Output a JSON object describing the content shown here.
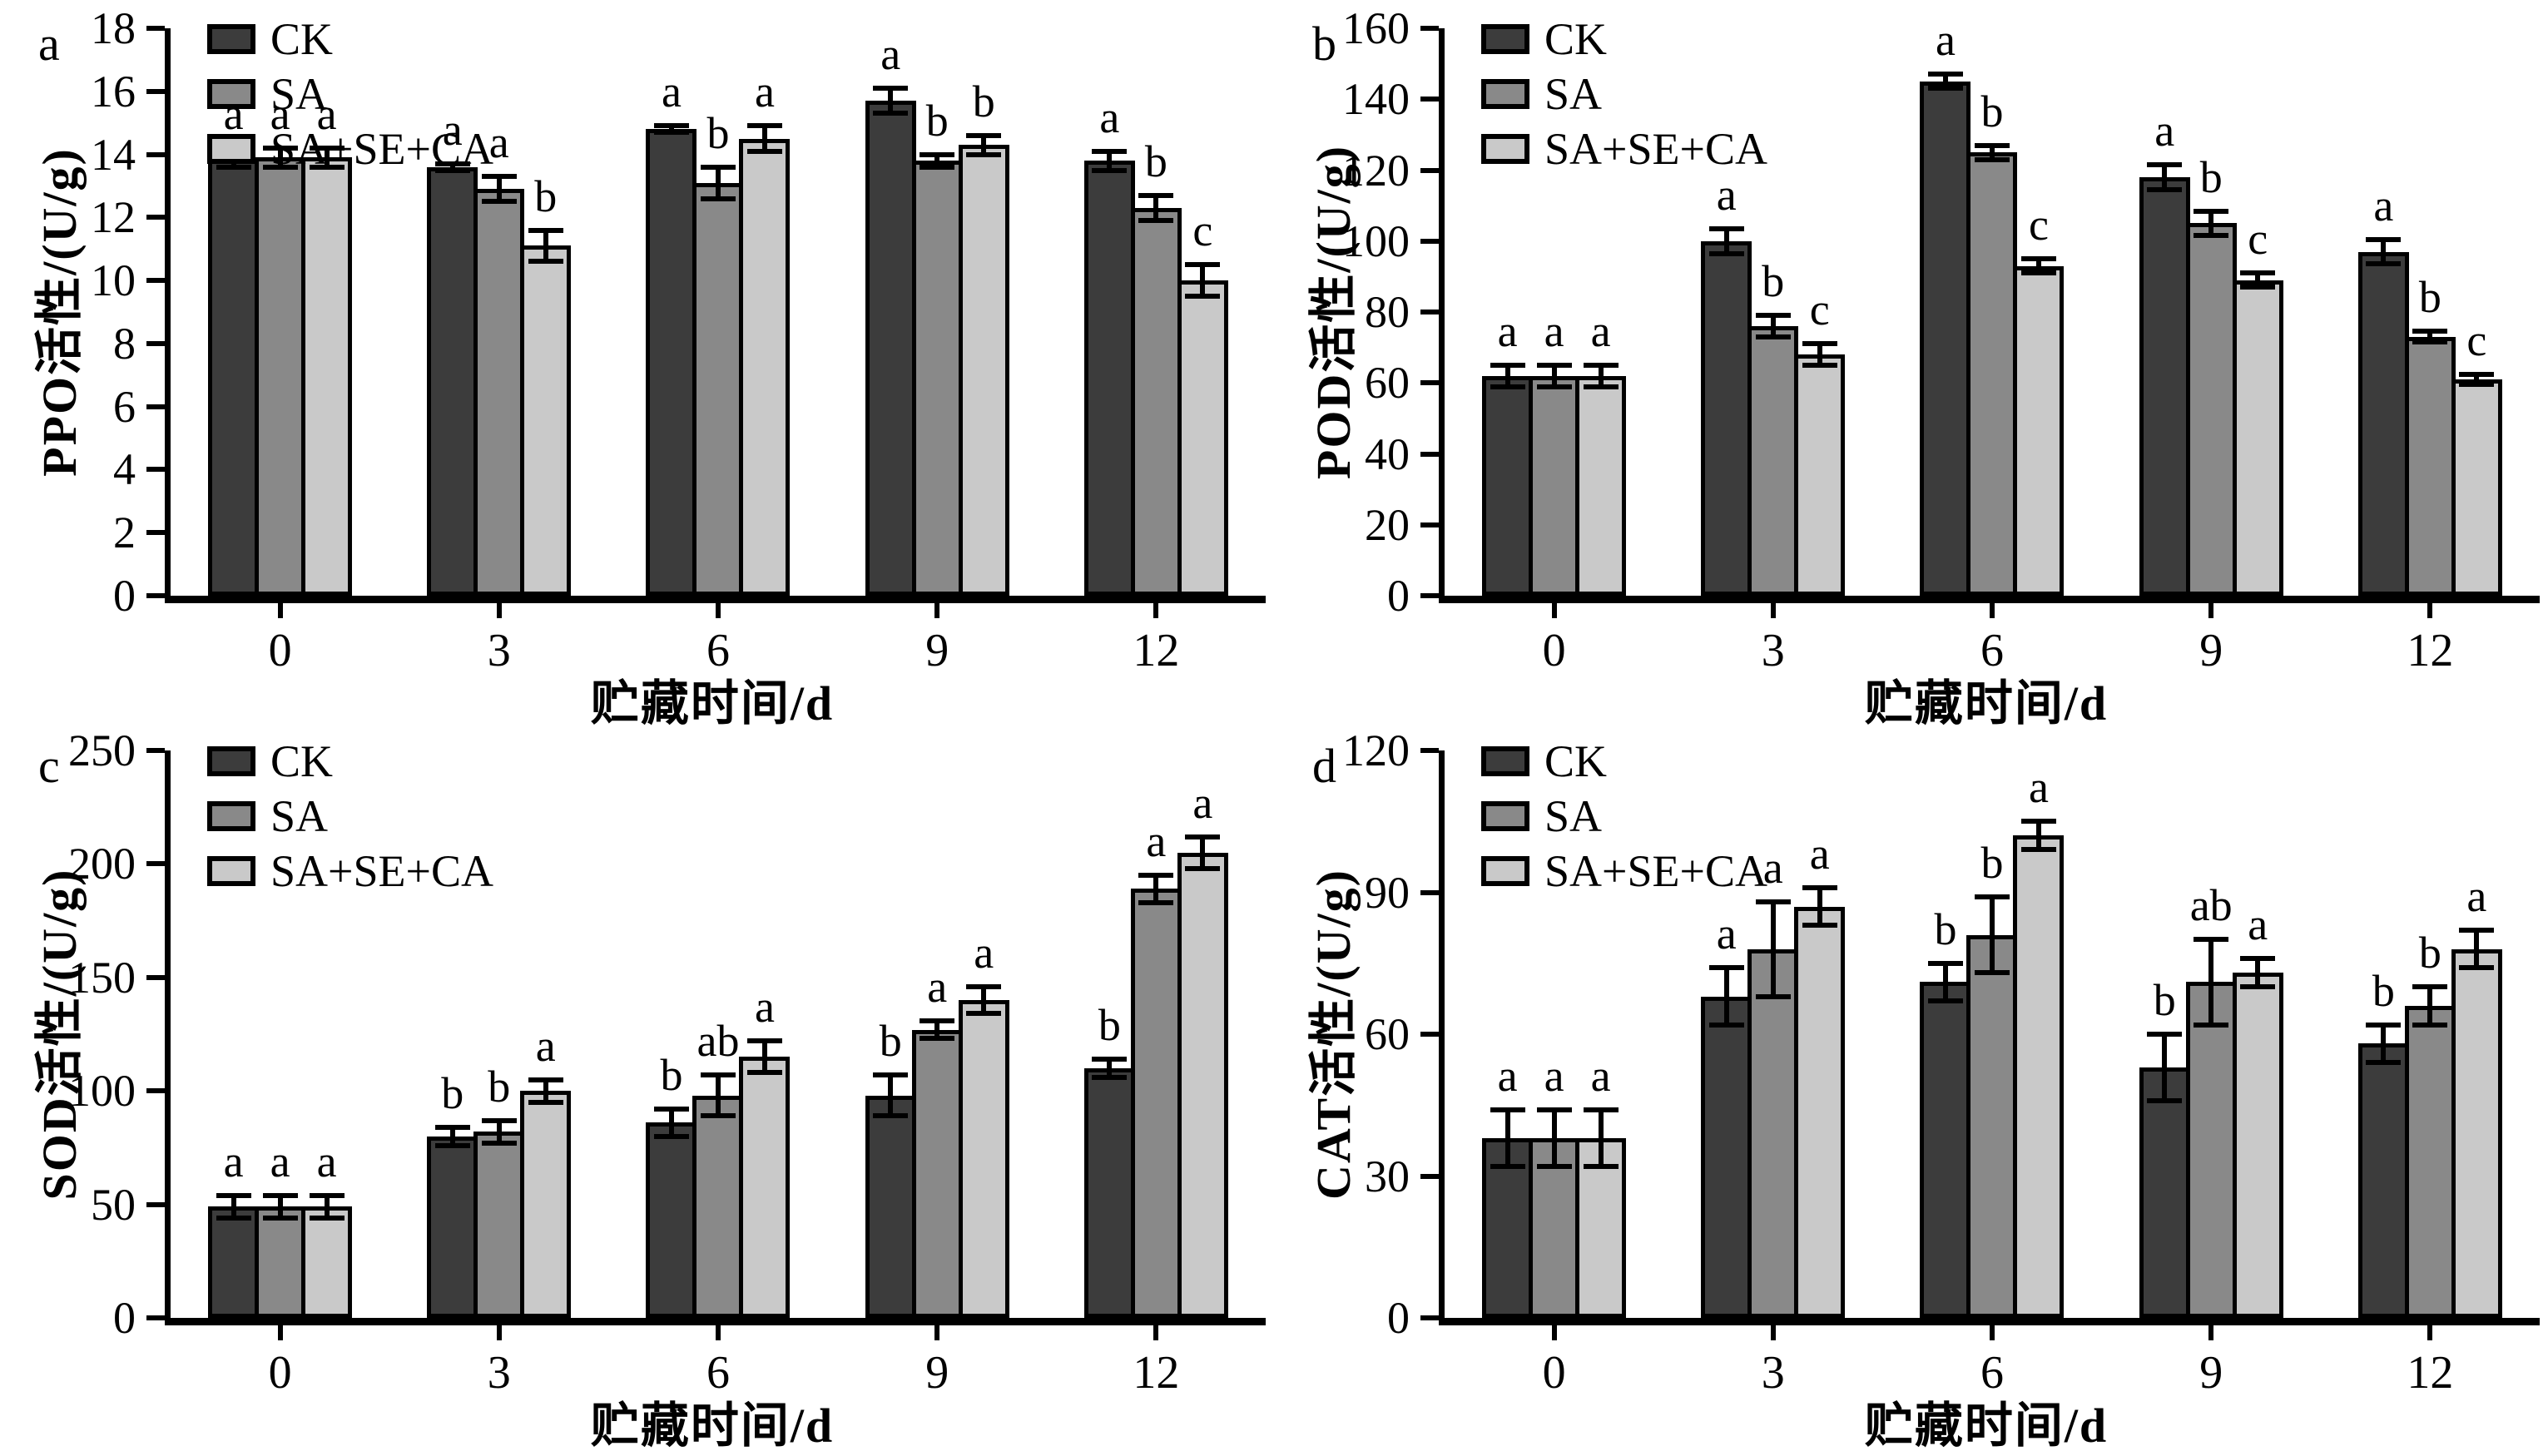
{
  "figure": {
    "series_colors": [
      "#3c3c3c",
      "#898989",
      "#c9c9c9"
    ],
    "axis_color": "#000000",
    "background": "#ffffff"
  },
  "chart_data": [
    {
      "type": "bar",
      "panel_label": "a",
      "ylabel": "PPO活性/(U/g)",
      "xlabel": "贮藏时间/d",
      "ylim": [
        0,
        18
      ],
      "ystep": 2,
      "categories": [
        "0",
        "3",
        "6",
        "9",
        "12"
      ],
      "legend": [
        "CK",
        "SA",
        "SA+SE+CA"
      ],
      "legend_position": "top-left",
      "series": [
        {
          "name": "CK",
          "values": [
            13.9,
            13.6,
            14.8,
            15.7,
            13.8
          ],
          "errors": [
            0.3,
            0.1,
            0.1,
            0.4,
            0.3
          ],
          "sig_letters": [
            "a",
            "a",
            "a",
            "a",
            "a"
          ]
        },
        {
          "name": "SA",
          "values": [
            13.9,
            12.9,
            13.1,
            13.8,
            12.3
          ],
          "errors": [
            0.3,
            0.4,
            0.5,
            0.2,
            0.4
          ],
          "sig_letters": [
            "a",
            "a",
            "b",
            "b",
            "b"
          ]
        },
        {
          "name": "SA+SE+CA",
          "values": [
            13.9,
            11.1,
            14.5,
            14.3,
            10.0
          ],
          "errors": [
            0.3,
            0.5,
            0.4,
            0.3,
            0.5
          ],
          "sig_letters": [
            "a",
            "b",
            "a",
            "b",
            "c"
          ]
        }
      ]
    },
    {
      "type": "bar",
      "panel_label": "b",
      "ylabel": "POD活性/(U/g)",
      "xlabel": "贮藏时间/d",
      "ylim": [
        0,
        160
      ],
      "ystep": 20,
      "categories": [
        "0",
        "3",
        "6",
        "9",
        "12"
      ],
      "legend": [
        "CK",
        "SA",
        "SA+SE+CA"
      ],
      "legend_position": "top-left",
      "series": [
        {
          "name": "CK",
          "values": [
            62,
            100,
            145,
            118,
            97
          ],
          "errors": [
            3,
            3.5,
            2,
            3.5,
            3.5
          ],
          "sig_letters": [
            "a",
            "a",
            "a",
            "a",
            "a"
          ]
        },
        {
          "name": "SA",
          "values": [
            62,
            76,
            125,
            105,
            73
          ],
          "errors": [
            3,
            3,
            2,
            3.5,
            1.5
          ],
          "sig_letters": [
            "a",
            "b",
            "b",
            "b",
            "b"
          ]
        },
        {
          "name": "SA+SE+CA",
          "values": [
            62,
            68,
            93,
            89,
            61
          ],
          "errors": [
            3,
            3,
            2,
            2,
            1.5
          ],
          "sig_letters": [
            "a",
            "c",
            "c",
            "c",
            "c"
          ]
        }
      ]
    },
    {
      "type": "bar",
      "panel_label": "c",
      "ylabel": "SOD活性/(U/g)",
      "xlabel": "贮藏时间/d",
      "ylim": [
        0,
        250
      ],
      "ystep": 50,
      "categories": [
        "0",
        "3",
        "6",
        "9",
        "12"
      ],
      "legend": [
        "CK",
        "SA",
        "SA+SE+CA"
      ],
      "legend_position": "top-left",
      "series": [
        {
          "name": "CK",
          "values": [
            49,
            80,
            86,
            98,
            110
          ],
          "errors": [
            5,
            4,
            6,
            9,
            4
          ],
          "sig_letters": [
            "a",
            "b",
            "b",
            "b",
            "b"
          ]
        },
        {
          "name": "SA",
          "values": [
            49,
            82,
            98,
            127,
            189
          ],
          "errors": [
            5,
            5,
            9,
            4,
            6
          ],
          "sig_letters": [
            "a",
            "b",
            "ab",
            "a",
            "a"
          ]
        },
        {
          "name": "SA+SE+CA",
          "values": [
            49,
            100,
            115,
            140,
            205
          ],
          "errors": [
            5,
            5,
            7,
            6,
            7
          ],
          "sig_letters": [
            "a",
            "a",
            "a",
            "a",
            "a"
          ]
        }
      ]
    },
    {
      "type": "bar",
      "panel_label": "d",
      "ylabel": "CAT活性/(U/g)",
      "xlabel": "贮藏时间/d",
      "ylim": [
        0,
        120
      ],
      "ystep": 30,
      "categories": [
        "0",
        "3",
        "6",
        "9",
        "12"
      ],
      "legend": [
        "CK",
        "SA",
        "SA+SE+CA"
      ],
      "legend_position": "top-left",
      "series": [
        {
          "name": "CK",
          "values": [
            38,
            68,
            71,
            53,
            58
          ],
          "errors": [
            6,
            6,
            4,
            7,
            4
          ],
          "sig_letters": [
            "a",
            "a",
            "b",
            "b",
            "b"
          ]
        },
        {
          "name": "SA",
          "values": [
            38,
            78,
            81,
            71,
            66
          ],
          "errors": [
            6,
            10,
            8,
            9,
            4
          ],
          "sig_letters": [
            "a",
            "a",
            "b",
            "ab",
            "b"
          ]
        },
        {
          "name": "SA+SE+CA",
          "values": [
            38,
            87,
            102,
            73,
            78
          ],
          "errors": [
            6,
            4,
            3,
            3,
            4
          ],
          "sig_letters": [
            "a",
            "a",
            "a",
            "a",
            "a"
          ]
        }
      ]
    }
  ]
}
